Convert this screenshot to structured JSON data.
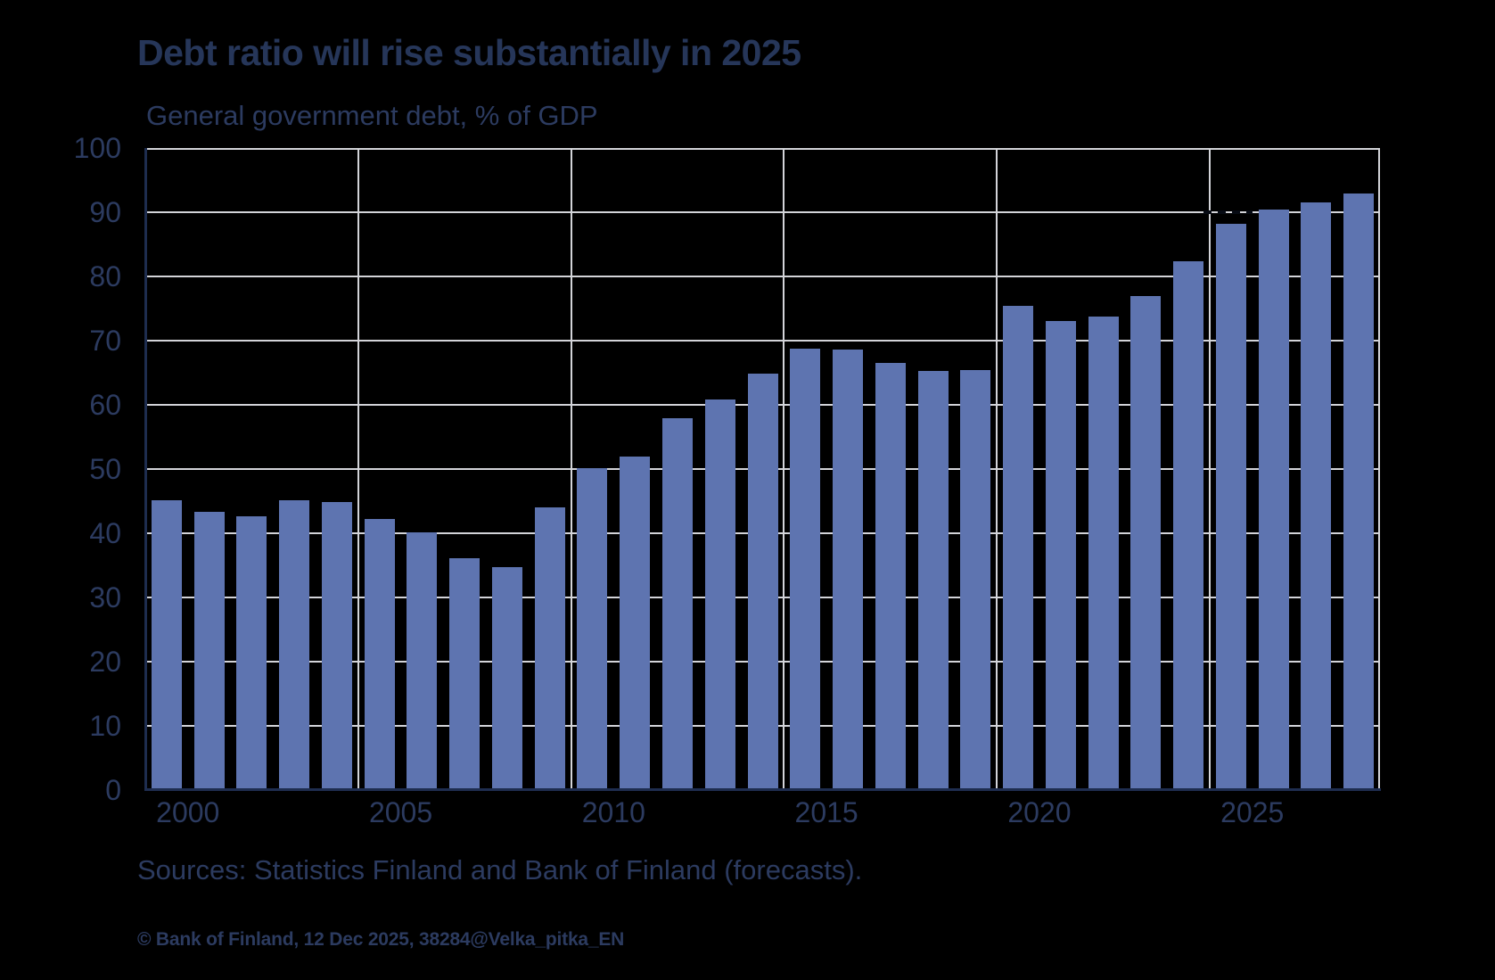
{
  "title": "Debt ratio will rise substantially in 2025",
  "subtitle": "General government debt, % of GDP",
  "source_note": "Sources: Statistics Finland and Bank of Finland (forecasts).",
  "copyright": "© Bank of Finland, 12 Dec 2025, 38284@Velka_pitka_EN",
  "colors": {
    "background": "#000000",
    "bar": "#5E74B0",
    "gridline": "#D3D4D9",
    "axis": "#1E2D4F",
    "text": "#2C3B60",
    "title_text": "#263659",
    "marker": "#070B14"
  },
  "chart_data": {
    "type": "bar",
    "title": "Debt ratio will rise substantially in 2025",
    "subtitle": "General government debt, % of GDP",
    "xlabel": "",
    "ylabel": "General government debt, % of GDP",
    "ylim": [
      0,
      100
    ],
    "y_ticks": [
      0,
      10,
      20,
      30,
      40,
      50,
      60,
      70,
      80,
      90,
      100
    ],
    "x_tick_labels": [
      "2000",
      "2005",
      "2010",
      "2015",
      "2020",
      "2025"
    ],
    "grid": "both",
    "legend": "none",
    "categories": [
      2000,
      2001,
      2002,
      2003,
      2004,
      2005,
      2006,
      2007,
      2008,
      2009,
      2010,
      2011,
      2012,
      2013,
      2014,
      2015,
      2016,
      2017,
      2018,
      2019,
      2020,
      2021,
      2022,
      2023,
      2024,
      2025,
      2026,
      2027,
      2028
    ],
    "values": [
      45.1,
      43.4,
      42.7,
      45.2,
      44.8,
      42.2,
      40.2,
      36.1,
      34.7,
      44.0,
      50.1,
      52.0,
      57.9,
      60.8,
      64.9,
      68.8,
      68.6,
      66.5,
      65.3,
      65.4,
      75.4,
      73.1,
      73.8,
      77.0,
      82.3,
      88.2,
      90.4,
      91.5,
      92.9
    ],
    "forecast_years": [
      2025,
      2026,
      2027,
      2028
    ],
    "annotation": {
      "type": "dashed-segment",
      "value": 90,
      "year": 2025,
      "description": "short black dashed horizontal marker at 90 above the 2025 bar"
    }
  }
}
